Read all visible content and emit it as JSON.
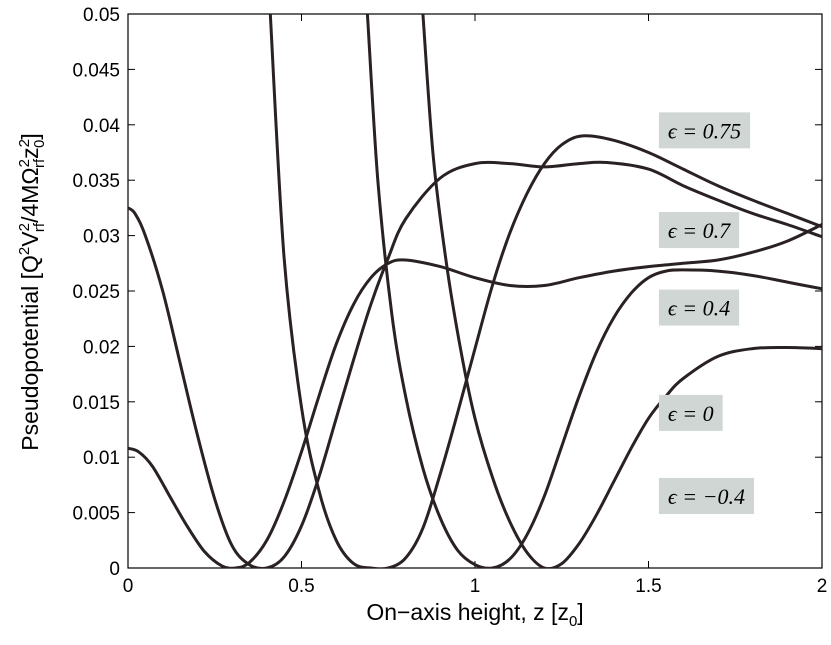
{
  "chart_data": {
    "type": "line",
    "title": "",
    "xlabel_main": "On−axis height, z [z",
    "xlabel_sub": "0",
    "xlabel_end": "]",
    "ylabel_main": "Pseudopotential [Q",
    "ylabel_sup1": "2",
    "ylabel_v": "V",
    "ylabel_sup2": "2",
    "ylabel_sub_rf": "rf",
    "ylabel_mid": "/4MΩ",
    "ylabel_sup3": "2",
    "ylabel_sub_rf2": "rf",
    "ylabel_z": "z",
    "ylabel_sup4": "2",
    "ylabel_sub0": "0",
    "ylabel_end": "]",
    "xlim": [
      0,
      2
    ],
    "ylim": [
      0,
      0.05
    ],
    "xticks": [
      0,
      0.5,
      1,
      1.5,
      2
    ],
    "xtick_labels": [
      "0",
      "0.5",
      "1",
      "1.5",
      "2"
    ],
    "yticks": [
      0,
      0.005,
      0.01,
      0.015,
      0.02,
      0.025,
      0.03,
      0.035,
      0.04,
      0.045,
      0.05
    ],
    "ytick_labels": [
      "0",
      "0.005",
      "0.01",
      "0.015",
      "0.02",
      "0.025",
      "0.03",
      "0.035",
      "0.04",
      "0.045",
      "0.05"
    ],
    "grid": false,
    "series": [
      {
        "name": "ϵ = 0.75",
        "points": [
          [
            0.41,
            0.05
          ],
          [
            0.45,
            0.028
          ],
          [
            0.5,
            0.0145
          ],
          [
            0.55,
            0.007
          ],
          [
            0.6,
            0.0025
          ],
          [
            0.65,
            0.0004
          ],
          [
            0.7,
            0.0
          ],
          [
            0.75,
            0.0
          ],
          [
            0.8,
            0.0009
          ],
          [
            0.85,
            0.0036
          ],
          [
            0.9,
            0.0085
          ],
          [
            0.95,
            0.014
          ],
          [
            1.0,
            0.0198
          ],
          [
            1.05,
            0.0255
          ],
          [
            1.1,
            0.0302
          ],
          [
            1.15,
            0.0338
          ],
          [
            1.2,
            0.0365
          ],
          [
            1.25,
            0.0382
          ],
          [
            1.31,
            0.039
          ],
          [
            1.4,
            0.0386
          ],
          [
            1.5,
            0.0375
          ],
          [
            1.6,
            0.036
          ],
          [
            1.7,
            0.0345
          ],
          [
            1.8,
            0.0332
          ],
          [
            1.9,
            0.032
          ],
          [
            2.0,
            0.0308
          ]
        ]
      },
      {
        "name": "ϵ = 0.7",
        "points": [
          [
            0.69,
            0.05
          ],
          [
            0.72,
            0.035
          ],
          [
            0.76,
            0.023
          ],
          [
            0.8,
            0.0155
          ],
          [
            0.85,
            0.009
          ],
          [
            0.9,
            0.0045
          ],
          [
            0.95,
            0.0016
          ],
          [
            1.0,
            0.0003
          ],
          [
            1.05,
            0.0
          ],
          [
            1.1,
            0.0008
          ],
          [
            1.15,
            0.003
          ],
          [
            1.2,
            0.0065
          ],
          [
            1.25,
            0.011
          ],
          [
            1.3,
            0.0155
          ],
          [
            1.35,
            0.0195
          ],
          [
            1.4,
            0.0226
          ],
          [
            1.45,
            0.0248
          ],
          [
            1.5,
            0.0262
          ],
          [
            1.55,
            0.0268
          ],
          [
            1.6,
            0.0269
          ],
          [
            1.7,
            0.0268
          ],
          [
            1.8,
            0.0264
          ],
          [
            1.9,
            0.0258
          ],
          [
            2.0,
            0.0252
          ]
        ]
      },
      {
        "name": "ϵ = 0.4",
        "points": [
          [
            0.85,
            0.05
          ],
          [
            0.88,
            0.037
          ],
          [
            0.92,
            0.027
          ],
          [
            0.96,
            0.0195
          ],
          [
            1.0,
            0.0135
          ],
          [
            1.05,
            0.0082
          ],
          [
            1.1,
            0.0042
          ],
          [
            1.15,
            0.0014
          ],
          [
            1.2,
            0.0
          ],
          [
            1.25,
            0.0004
          ],
          [
            1.3,
            0.0022
          ],
          [
            1.35,
            0.0048
          ],
          [
            1.4,
            0.0078
          ],
          [
            1.45,
            0.0108
          ],
          [
            1.5,
            0.0135
          ],
          [
            1.55,
            0.0155
          ],
          [
            1.6,
            0.0171
          ],
          [
            1.7,
            0.0191
          ],
          [
            1.8,
            0.0198
          ],
          [
            1.9,
            0.0199
          ],
          [
            2.0,
            0.0198
          ]
        ]
      },
      {
        "name": "ϵ = 0",
        "points": [
          [
            0.0,
            0.0325
          ],
          [
            0.02,
            0.032
          ],
          [
            0.05,
            0.03
          ],
          [
            0.1,
            0.025
          ],
          [
            0.15,
            0.0185
          ],
          [
            0.2,
            0.012
          ],
          [
            0.25,
            0.0062
          ],
          [
            0.3,
            0.002
          ],
          [
            0.35,
            0.0003
          ],
          [
            0.4,
            0.0
          ],
          [
            0.45,
            0.001
          ],
          [
            0.5,
            0.0038
          ],
          [
            0.55,
            0.0082
          ],
          [
            0.6,
            0.0135
          ],
          [
            0.65,
            0.0188
          ],
          [
            0.7,
            0.0238
          ],
          [
            0.75,
            0.028
          ],
          [
            0.8,
            0.0315
          ],
          [
            0.9,
            0.0352
          ],
          [
            1.0,
            0.0365
          ],
          [
            1.1,
            0.0365
          ],
          [
            1.2,
            0.0362
          ],
          [
            1.3,
            0.0365
          ],
          [
            1.38,
            0.0366
          ],
          [
            1.5,
            0.036
          ],
          [
            1.6,
            0.0345
          ],
          [
            1.7,
            0.0332
          ],
          [
            1.8,
            0.032
          ],
          [
            1.9,
            0.031
          ],
          [
            2.0,
            0.0299
          ]
        ]
      },
      {
        "name": "ϵ = −0.4",
        "points": [
          [
            0.0,
            0.0108
          ],
          [
            0.03,
            0.0105
          ],
          [
            0.07,
            0.0092
          ],
          [
            0.12,
            0.0065
          ],
          [
            0.17,
            0.0038
          ],
          [
            0.22,
            0.0015
          ],
          [
            0.27,
            0.0002
          ],
          [
            0.31,
            0.0
          ],
          [
            0.35,
            0.0005
          ],
          [
            0.4,
            0.0025
          ],
          [
            0.45,
            0.006
          ],
          [
            0.5,
            0.0105
          ],
          [
            0.55,
            0.0155
          ],
          [
            0.6,
            0.0202
          ],
          [
            0.65,
            0.0238
          ],
          [
            0.7,
            0.0262
          ],
          [
            0.75,
            0.0275
          ],
          [
            0.8,
            0.0278
          ],
          [
            0.9,
            0.0272
          ],
          [
            1.0,
            0.0262
          ],
          [
            1.1,
            0.0255
          ],
          [
            1.2,
            0.0255
          ],
          [
            1.3,
            0.0262
          ],
          [
            1.4,
            0.0268
          ],
          [
            1.5,
            0.0272
          ],
          [
            1.6,
            0.0275
          ],
          [
            1.7,
            0.0278
          ],
          [
            1.8,
            0.0285
          ],
          [
            1.9,
            0.0295
          ],
          [
            2.0,
            0.031
          ]
        ]
      }
    ],
    "annotations": [
      {
        "text": "ϵ = 0.75",
        "x": 1.53,
        "y": 0.0395
      },
      {
        "text": "ϵ = 0.7",
        "x": 1.53,
        "y": 0.0305
      },
      {
        "text": "ϵ = 0.4",
        "x": 1.53,
        "y": 0.0235
      },
      {
        "text": "ϵ = 0",
        "x": 1.53,
        "y": 0.014
      },
      {
        "text": "ϵ = −0.4",
        "x": 1.53,
        "y": 0.0065
      }
    ]
  }
}
